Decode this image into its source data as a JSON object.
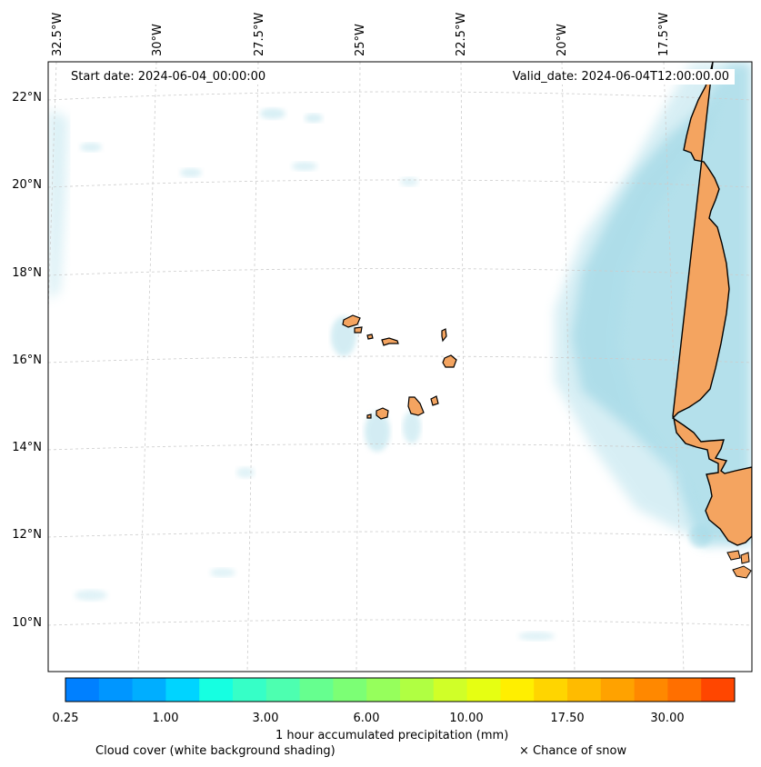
{
  "map": {
    "start_label": "Start date: 2024-06-04_00:00:00",
    "valid_label": "Valid_date: 2024-06-04T12:00:00.00",
    "lon_labels": [
      "32.5°W",
      "30°W",
      "27.5°W",
      "25°W",
      "22.5°W",
      "20°W",
      "17.5°W"
    ],
    "lat_labels": [
      "22°N",
      "20°N",
      "18°N",
      "16°N",
      "14°N",
      "12°N",
      "10°N"
    ],
    "land_color": "#f4a460",
    "cloud_color": "#a8dbe8"
  },
  "colorbar": {
    "title": "1 hour accumulated precipitation (mm)",
    "tick_labels": [
      "0.25",
      "1.00",
      "3.00",
      "6.00",
      "10.00",
      "17.50",
      "30.00"
    ],
    "colors": [
      "#0080ff",
      "#0096ff",
      "#00aeff",
      "#00d4ff",
      "#16ffe1",
      "#36ffc7",
      "#4dffb0",
      "#66ff8f",
      "#7cff75",
      "#96ff5c",
      "#b0ff42",
      "#d0ff28",
      "#e6ff12",
      "#ffef00",
      "#ffd500",
      "#ffbb00",
      "#ffa200",
      "#ff8800",
      "#ff6f00",
      "#ff4600"
    ]
  },
  "legend": {
    "cloud_note": "Cloud cover (white background shading)",
    "snow_note": "× Chance of snow"
  }
}
